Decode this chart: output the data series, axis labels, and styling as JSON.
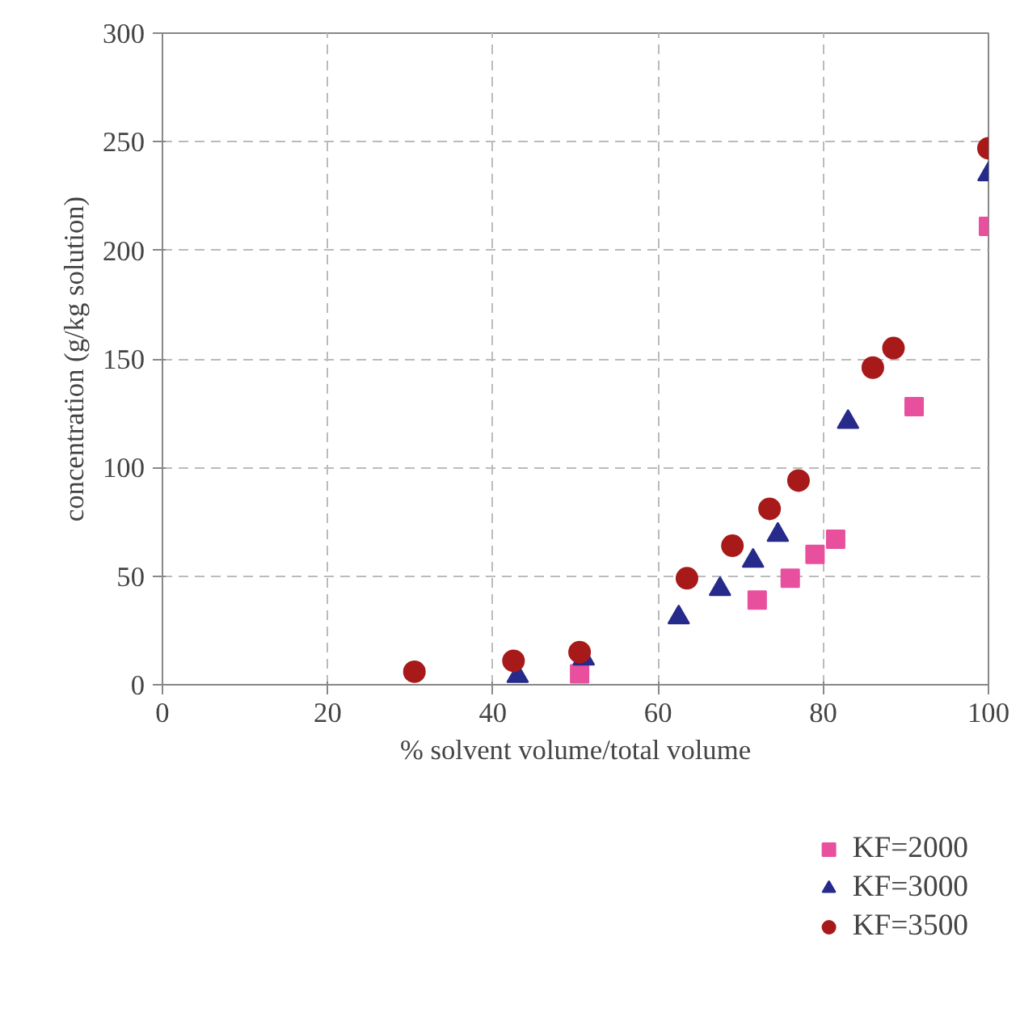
{
  "chart_data": {
    "type": "scatter",
    "xlabel": "% solvent volume/total volume",
    "ylabel": "concentration (g/kg solution)",
    "xlim": [
      0,
      100
    ],
    "ylim": [
      0,
      300
    ],
    "xticks": [
      0,
      20,
      40,
      60,
      80,
      100
    ],
    "yticks": [
      0,
      50,
      100,
      150,
      200,
      250,
      300
    ],
    "grid": true,
    "legend": "bottom right",
    "series": [
      {
        "name": "KF=2000",
        "color": "#e8509e",
        "marker": "square",
        "x": [
          50.5,
          72,
          76,
          79,
          81.5,
          91,
          100
        ],
        "values": [
          5,
          39,
          49,
          60,
          67,
          128,
          211
        ]
      },
      {
        "name": "KF=3000",
        "color": "#262a8a",
        "marker": "triangle",
        "x": [
          43,
          51,
          62.5,
          67.5,
          71.5,
          74.5,
          83,
          100
        ],
        "values": [
          4,
          12,
          31,
          44,
          57,
          69,
          121,
          235
        ]
      },
      {
        "name": "KF=3500",
        "color": "#a81a1a",
        "marker": "circle",
        "x": [
          30.5,
          42.5,
          50.5,
          63.5,
          69,
          73.5,
          77,
          86,
          88.5,
          100
        ],
        "values": [
          6,
          11,
          15,
          49,
          64,
          81,
          94,
          146,
          155,
          247
        ]
      }
    ]
  }
}
